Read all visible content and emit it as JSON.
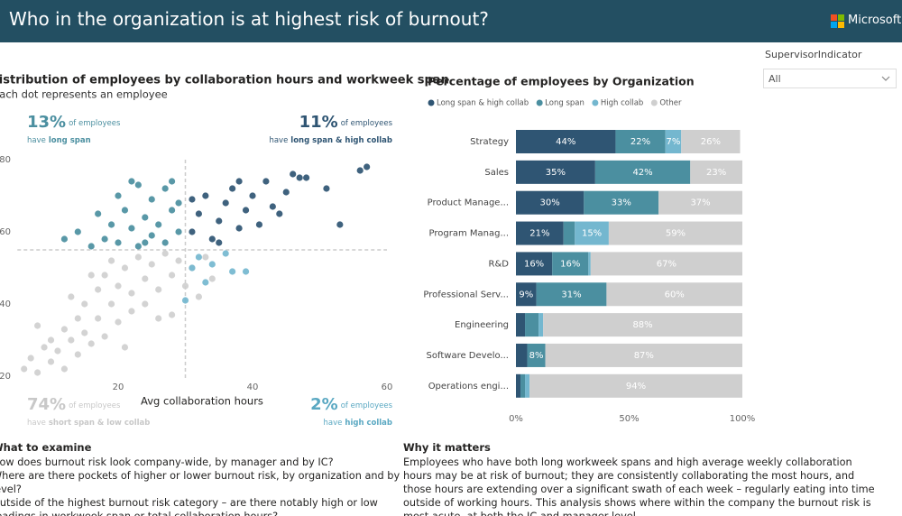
{
  "header": {
    "title": "Who in the organization is at highest risk of burnout?",
    "brand": "Microsoft"
  },
  "filter": {
    "label": "SupervisorIndicator",
    "value": "All"
  },
  "chart_data": [
    {
      "type": "scatter",
      "title": "Distribution of employees by collaboration hours and workweek span",
      "subtitle": "Each dot represents an employee",
      "x_label": "Avg collaboration hours",
      "xlim": [
        5,
        60
      ],
      "xticks": [
        20,
        40,
        60
      ],
      "ylim": [
        19,
        80
      ],
      "yticks": [
        20,
        40,
        60,
        80
      ],
      "grid": false,
      "reference_lines": {
        "x": 30,
        "y": 55
      },
      "annotations": [
        {
          "corner": "top-left",
          "percent": "13%",
          "text": "of employees",
          "prefix": "have",
          "detail": "long span",
          "color": "#4b8fa0"
        },
        {
          "corner": "top-right",
          "percent": "11%",
          "text": "of employees",
          "prefix": "have",
          "detail": "long span & high collab",
          "color": "#2f5573"
        },
        {
          "corner": "bottom-left",
          "percent": "74%",
          "text": "of employees",
          "prefix": "have",
          "detail": "short span & low collab",
          "color": "#c8c8c8"
        },
        {
          "corner": "bottom-right",
          "percent": "2%",
          "text": "of employees",
          "prefix": "have",
          "detail": "high collab",
          "color": "#5aa8c2"
        }
      ],
      "series": [
        {
          "name": "Other",
          "color": "#cfcfcf",
          "x": [
            6,
            7,
            8,
            9,
            10,
            10,
            11,
            12,
            12,
            13,
            14,
            14,
            15,
            15,
            16,
            17,
            17,
            18,
            18,
            19,
            20,
            20,
            21,
            22,
            22,
            23,
            24,
            24,
            25,
            26,
            27,
            28,
            28,
            29,
            30,
            31,
            32,
            33,
            34,
            26,
            19,
            13,
            8,
            21,
            16
          ],
          "values": [
            22,
            25,
            21,
            28,
            24,
            30,
            27,
            33,
            22,
            30,
            36,
            26,
            40,
            32,
            29,
            44,
            36,
            31,
            48,
            40,
            35,
            45,
            50,
            38,
            43,
            53,
            47,
            40,
            51,
            44,
            54,
            48,
            37,
            52,
            45,
            50,
            42,
            53,
            47,
            36,
            52,
            42,
            34,
            28,
            48
          ]
        },
        {
          "name": "Long span",
          "color": "#4b8fa0",
          "x": [
            14,
            16,
            17,
            18,
            19,
            20,
            20,
            21,
            22,
            23,
            23,
            24,
            25,
            25,
            26,
            27,
            27,
            28,
            29,
            29,
            12,
            22,
            24,
            28
          ],
          "values": [
            60,
            56,
            65,
            58,
            62,
            70,
            57,
            66,
            61,
            73,
            56,
            64,
            69,
            59,
            62,
            72,
            57,
            66,
            60,
            68,
            58,
            74,
            57,
            74
          ]
        },
        {
          "name": "Long span & high collab",
          "color": "#2f5573",
          "x": [
            31,
            32,
            33,
            34,
            35,
            36,
            37,
            38,
            39,
            40,
            41,
            42,
            43,
            44,
            45,
            46,
            47,
            48,
            51,
            53,
            56,
            57,
            35,
            38,
            31
          ],
          "values": [
            60,
            65,
            70,
            58,
            63,
            68,
            72,
            61,
            66,
            70,
            62,
            74,
            67,
            65,
            71,
            76,
            75,
            75,
            72,
            62,
            77,
            78,
            57,
            74,
            69
          ]
        },
        {
          "name": "High collab",
          "color": "#74b7cf",
          "x": [
            31,
            32,
            33,
            34,
            36,
            37,
            39,
            30
          ],
          "values": [
            50,
            53,
            46,
            51,
            54,
            49,
            49,
            41
          ]
        }
      ]
    },
    {
      "type": "bar",
      "orientation": "horizontal",
      "stacked": true,
      "title": "Percentage of employees by Organization",
      "categories": [
        "Strategy",
        "Sales",
        "Product Manage...",
        "Program Manag...",
        "R&D",
        "Professional Serv...",
        "Engineering",
        "Software Develo...",
        "Operations engi..."
      ],
      "xlim": [
        0,
        100
      ],
      "xticks": [
        {
          "value": 0,
          "label": "0%"
        },
        {
          "value": 50,
          "label": "50%"
        },
        {
          "value": 100,
          "label": "100%"
        }
      ],
      "series": [
        {
          "name": "Long span & high collab",
          "color": "#2f5573",
          "values": [
            44,
            35,
            30,
            21,
            16,
            9,
            4,
            5,
            2
          ],
          "value_labels": [
            "44%",
            "35%",
            "30%",
            "21%",
            "16%",
            "9%",
            null,
            null,
            null
          ]
        },
        {
          "name": "Long span",
          "color": "#4b8fa0",
          "values": [
            22,
            42,
            33,
            5,
            16,
            31,
            6,
            8,
            2
          ],
          "value_labels": [
            "22%",
            "42%",
            "33%",
            null,
            "16%",
            "31%",
            null,
            "8%",
            null
          ]
        },
        {
          "name": "High collab",
          "color": "#74b7cf",
          "values": [
            7,
            0,
            0,
            15,
            1,
            0,
            2,
            0,
            2
          ],
          "value_labels": [
            "7%",
            null,
            null,
            "15%",
            null,
            null,
            null,
            null,
            null
          ]
        },
        {
          "name": "Other",
          "color": "#cfcfcf",
          "values": [
            26,
            23,
            37,
            59,
            67,
            60,
            88,
            87,
            94
          ],
          "value_labels": [
            "26%",
            "23%",
            "37%",
            "59%",
            "67%",
            "60%",
            "88%",
            "87%",
            "94%"
          ]
        }
      ]
    }
  ],
  "examine": {
    "title": "What to examine",
    "items": [
      "How does burnout risk look company-wide, by manager and by IC?",
      "Where are there pockets of higher or lower burnout risk, by organization and by level?",
      "Outside of the highest burnout risk category – are there notably high or low readings in workweek span or total collaboration hours?"
    ]
  },
  "matters": {
    "title": "Why it matters",
    "text": "Employees who have both long workweek spans and high average weekly collaboration hours may be at risk of burnout; they are consistently collaborating the most hours, and those hours are extending over a significant swath of each week – regularly eating into time outside of working hours. This analysis shows where within the company the burnout risk is most acute, at both the IC and manager level."
  }
}
